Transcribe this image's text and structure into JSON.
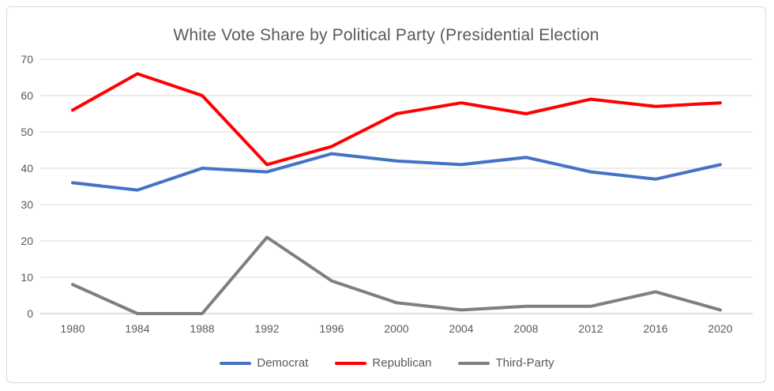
{
  "title": "White Vote Share by Political Party (Presidential Election",
  "colors": {
    "democrat": "#4472C4",
    "republican": "#FF0000",
    "third_party": "#7F7F7F",
    "title_text": "#595959",
    "axis_text": "#595959",
    "gridline": "#D9D9D9",
    "axis_line": "#BFBFBF",
    "frame_border": "#D9D9D9",
    "background": "#FFFFFF"
  },
  "chart_data": {
    "type": "line",
    "title": "White Vote Share by Political Party (Presidential Election",
    "categories": [
      "1980",
      "1984",
      "1988",
      "1992",
      "1996",
      "2000",
      "2004",
      "2008",
      "2012",
      "2016",
      "2020"
    ],
    "series": [
      {
        "name": "Democrat",
        "color": "#4472C4",
        "values": [
          36,
          34,
          40,
          39,
          44,
          42,
          41,
          43,
          39,
          37,
          41
        ]
      },
      {
        "name": "Republican",
        "color": "#FF0000",
        "values": [
          56,
          66,
          60,
          41,
          46,
          55,
          58,
          55,
          59,
          57,
          58
        ]
      },
      {
        "name": "Third-Party",
        "color": "#7F7F7F",
        "values": [
          8,
          0,
          0,
          21,
          9,
          3,
          1,
          2,
          2,
          6,
          1
        ]
      }
    ],
    "xlabel": "",
    "ylabel": "",
    "ylim": [
      0,
      70
    ],
    "ytick_step": 10,
    "yticks": [
      "0",
      "10",
      "20",
      "30",
      "40",
      "50",
      "60",
      "70"
    ],
    "grid": true,
    "legend_position": "bottom"
  }
}
